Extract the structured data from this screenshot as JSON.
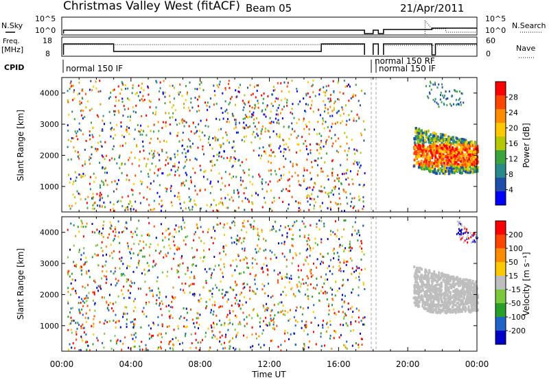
{
  "header": {
    "title": "Christmas Valley West (fitACF)",
    "beam": "Beam 05",
    "date": "21/Apr/2011"
  },
  "summary_panels": {
    "nsky_label": "N.Sky",
    "nsky_ticks": [
      "10^5",
      "10^0"
    ],
    "nsearch_label": "N.Search",
    "nsearch_ticks": [
      "10^5",
      "10^0"
    ],
    "freq_label": "Freq.",
    "freq_unit": "[MHz]",
    "freq_ticks": [
      "18",
      "8"
    ],
    "nave_label": "Nave",
    "nave_ticks": [
      "60",
      "0"
    ],
    "cpid_label": "CPID",
    "cpid_modes": [
      "normal 150 IF",
      "normal 150 RF",
      "normal 150 IF"
    ]
  },
  "colors": {
    "power_scale": [
      "#0000ff",
      "#1f4fa8",
      "#2a8a8a",
      "#3ca43c",
      "#b5c800",
      "#ffc800",
      "#ff8c00",
      "#ff4500",
      "#ff0000"
    ],
    "velocity_scale": [
      "#0000c8",
      "#1e64c8",
      "#28a028",
      "#7cc83c",
      "#bebebe",
      "#ffc800",
      "#ff8c00",
      "#ff4500",
      "#ff0000"
    ],
    "ground_scatter": "#bebebe"
  },
  "chart_data": [
    {
      "type": "heatmap",
      "name": "power",
      "xlabel": "Time UT",
      "ylabel": "Slant Range [km]",
      "x_ticks": [
        "00:00",
        "04:00",
        "08:00",
        "12:00",
        "16:00",
        "20:00",
        "00:00"
      ],
      "x_range_hours": [
        0,
        24
      ],
      "ylim": [
        180,
        4500
      ],
      "y_ticks": [
        1000,
        2000,
        3000,
        4000
      ],
      "colorbar_label": "Power [dB]",
      "colorbar_ticks": [
        "28",
        "24",
        "20",
        "16",
        "12",
        "8",
        "4"
      ],
      "colorbar_range": [
        0,
        30
      ],
      "scatter_regions": [
        {
          "t_start": 0.3,
          "t_end": 17.5,
          "r_min": 200,
          "r_max": 4400,
          "kind": "sparse noise"
        },
        {
          "t_start": 20.3,
          "t_end": 24.0,
          "r_min": 1350,
          "r_max": 2900,
          "kind": "dense echoes"
        },
        {
          "t_start": 21.0,
          "t_end": 23.2,
          "r_min": 3500,
          "r_max": 4500,
          "kind": "patchy echoes"
        }
      ]
    },
    {
      "type": "heatmap",
      "name": "velocity",
      "xlabel": "Time UT",
      "ylabel": "Slant Range [km]",
      "x_ticks": [
        "00:00",
        "04:00",
        "08:00",
        "12:00",
        "16:00",
        "20:00",
        "00:00"
      ],
      "x_range_hours": [
        0,
        24
      ],
      "ylim": [
        180,
        4500
      ],
      "y_ticks": [
        1000,
        2000,
        3000,
        4000
      ],
      "colorbar_label": "Velocity [m s⁻¹]",
      "colorbar_ticks": [
        "200",
        "100",
        "50",
        "15",
        "-15",
        "-50",
        "-100",
        "-200"
      ],
      "colorbar_range": [
        -250,
        250
      ],
      "scatter_regions": [
        {
          "t_start": 0.3,
          "t_end": 17.5,
          "r_min": 200,
          "r_max": 4400,
          "kind": "sparse noise"
        },
        {
          "t_start": 20.3,
          "t_end": 24.0,
          "r_min": 1350,
          "r_max": 2900,
          "kind": "ground scatter"
        },
        {
          "t_start": 22.8,
          "t_end": 24.0,
          "r_min": 3600,
          "r_max": 4400,
          "kind": "patchy echoes"
        }
      ]
    }
  ]
}
